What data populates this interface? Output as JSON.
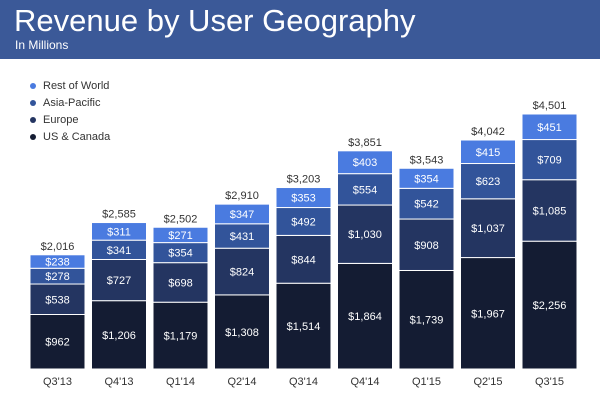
{
  "header": {
    "title": "Revenue by User Geography",
    "subtitle": "In Millions"
  },
  "colors": {
    "header_bg": "#3b5998",
    "US & Canada": "#141c33",
    "Europe": "#243561",
    "Asia-Pacific": "#32549a",
    "Rest of World": "#4a7be0"
  },
  "chart_data": {
    "type": "bar",
    "stacked": true,
    "title": "Revenue by User Geography",
    "subtitle": "In Millions",
    "categories": [
      "Q3'13",
      "Q4'13",
      "Q1'14",
      "Q2'14",
      "Q3'14",
      "Q4'14",
      "Q1'15",
      "Q2'15",
      "Q3'15"
    ],
    "series": [
      {
        "name": "US & Canada",
        "values": [
          962,
          1206,
          1179,
          1308,
          1514,
          1864,
          1739,
          1967,
          2256
        ],
        "labels": [
          "$962",
          "$1,206",
          "$1,179",
          "$1,308",
          "$1,514",
          "$1,864",
          "$1,739",
          "$1,967",
          "$2,256"
        ]
      },
      {
        "name": "Europe",
        "values": [
          538,
          727,
          698,
          824,
          844,
          1030,
          908,
          1037,
          1085
        ],
        "labels": [
          "$538",
          "$727",
          "$698",
          "$824",
          "$844",
          "$1,030",
          "$908",
          "$1,037",
          "$1,085"
        ]
      },
      {
        "name": "Asia-Pacific",
        "values": [
          278,
          341,
          354,
          431,
          492,
          554,
          542,
          623,
          709
        ],
        "labels": [
          "$278",
          "$341",
          "$354",
          "$431",
          "$492",
          "$554",
          "$542",
          "$623",
          "$709"
        ]
      },
      {
        "name": "Rest of World",
        "values": [
          238,
          311,
          271,
          347,
          353,
          403,
          354,
          415,
          451
        ],
        "labels": [
          "$238",
          "$311",
          "$271",
          "$347",
          "$353",
          "$403",
          "$354",
          "$415",
          "$451"
        ]
      }
    ],
    "totals": [
      2016,
      2585,
      2502,
      2910,
      3203,
      3851,
      3543,
      4042,
      4501
    ],
    "total_labels": [
      "$2,016",
      "$2,585",
      "$2,502",
      "$2,910",
      "$3,203",
      "$3,851",
      "$3,543",
      "$4,042",
      "$4,501"
    ],
    "legend": {
      "placement": "top-left",
      "entries": [
        "Rest of World",
        "Asia-Pacific",
        "Europe",
        "US & Canada"
      ]
    },
    "ylim": [
      0,
      4501
    ],
    "grid": false
  }
}
